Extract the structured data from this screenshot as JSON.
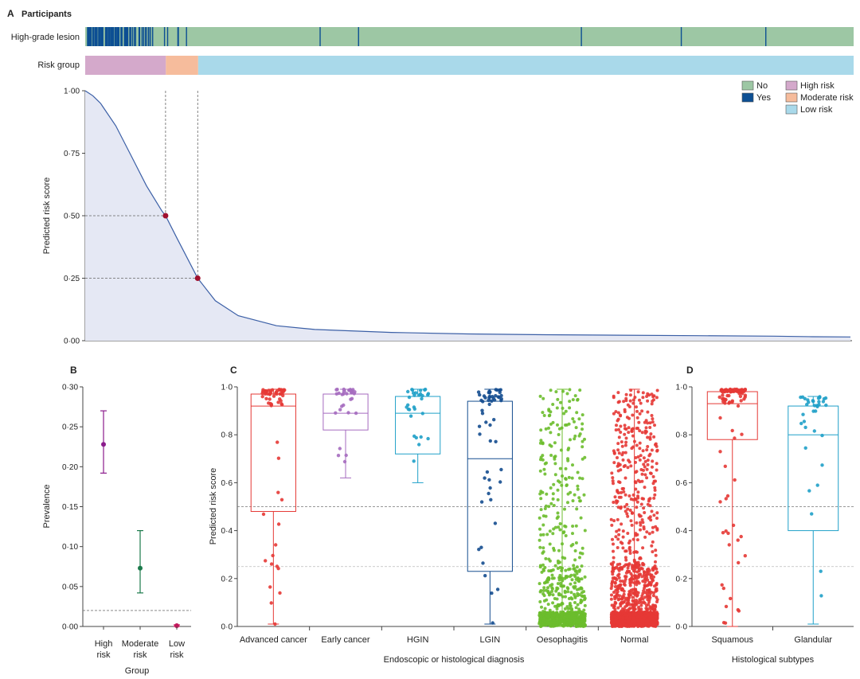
{
  "panelA": {
    "letter": "A",
    "title": "Participants",
    "row_lesion_label": "High-grade lesion",
    "row_risk_label": "Risk group",
    "ylabel": "Predicted risk score",
    "yticks": [
      "1·00",
      "0·75",
      "0·50",
      "0·25",
      "0·00"
    ],
    "legend": {
      "no": "No",
      "yes": "Yes",
      "high": "High risk",
      "moderate": "Moderate risk",
      "low": "Low risk"
    },
    "colors": {
      "no": "#9dc7a4",
      "yes": "#0d4f93",
      "high": "#d4a9cb",
      "moderate": "#f6bc9c",
      "low": "#a9d9ea",
      "curve": "#3b5fa6",
      "fill": "#e5e8f4",
      "dot": "#a0102e"
    },
    "thresholds": [
      0.5,
      0.25
    ],
    "group_fractions": {
      "high": 0.105,
      "moderate": 0.147
    }
  },
  "panelB": {
    "letter": "B",
    "ylabel": "Prevalence",
    "xlabel": "Group",
    "yticks": [
      "0·30",
      "0·25",
      "0·20",
      "0·15",
      "0·10",
      "0·05",
      "0·00"
    ],
    "cat_lines": [
      [
        "High",
        "risk"
      ],
      [
        "Moderate",
        "risk"
      ],
      [
        "Low",
        "risk"
      ]
    ],
    "reference_line": 0.02
  },
  "panelC": {
    "letter": "C",
    "ylabel": "Predicted risk score",
    "xlabel": "Endoscopic or histological diagnosis",
    "yticks": [
      "1·0",
      "0·8",
      "0·6",
      "0·4",
      "0·2",
      "0·0"
    ]
  },
  "panelD": {
    "letter": "D",
    "xlabel": "Histological subtypes",
    "yticks": [
      "1·0",
      "0·8",
      "0·6",
      "0·4",
      "0·2",
      "0·0"
    ]
  },
  "chart_data": [
    {
      "id": "A",
      "type": "area",
      "title": "Participants",
      "ylabel": "Predicted risk score",
      "ylim": [
        0,
        1
      ],
      "x": [
        0,
        0.01,
        0.02,
        0.04,
        0.06,
        0.08,
        0.1,
        0.105,
        0.12,
        0.147,
        0.17,
        0.2,
        0.25,
        0.3,
        0.4,
        0.5,
        0.6,
        0.7,
        0.8,
        0.9,
        0.95,
        1.0
      ],
      "y": [
        1.0,
        0.98,
        0.95,
        0.86,
        0.74,
        0.62,
        0.52,
        0.5,
        0.41,
        0.25,
        0.16,
        0.1,
        0.06,
        0.045,
        0.033,
        0.027,
        0.024,
        0.022,
        0.02,
        0.018,
        0.016,
        0.015
      ],
      "highlighted_points": [
        {
          "x": 0.105,
          "y": 0.5
        },
        {
          "x": 0.147,
          "y": 0.25
        }
      ],
      "lesion_yes_positions": [
        0.305,
        0.355,
        0.645,
        0.775,
        0.885
      ],
      "legend": [
        "No",
        "Yes",
        "High risk",
        "Moderate risk",
        "Low risk"
      ]
    },
    {
      "id": "B",
      "type": "scatter",
      "ylabel": "Prevalence",
      "xlabel": "Group",
      "categories": [
        "High risk",
        "Moderate risk",
        "Low risk"
      ],
      "values": [
        0.228,
        0.073,
        0.001
      ],
      "ci_low": [
        0.192,
        0.042,
        0.0
      ],
      "ci_high": [
        0.27,
        0.12,
        0.002
      ],
      "colors": [
        "#8b1c8c",
        "#1b7a4b",
        "#c2185b"
      ],
      "ylim": [
        0,
        0.3
      ]
    },
    {
      "id": "C",
      "type": "box",
      "ylabel": "Predicted risk score",
      "xlabel": "Endoscopic or histological diagnosis",
      "ylim": [
        0,
        1
      ],
      "thresholds": [
        0.5,
        0.25
      ],
      "categories": [
        "Advanced cancer",
        "Early cancer",
        "HGIN",
        "LGIN",
        "Oesophagitis",
        "Normal"
      ],
      "colors": [
        "#e53935",
        "#a56bbf",
        "#1fa0c8",
        "#144d8f",
        "#6cbd2c",
        "#e53935"
      ],
      "boxes": [
        {
          "min": 0.01,
          "q1": 0.48,
          "median": 0.92,
          "q3": 0.97,
          "max": 0.99,
          "n": 60
        },
        {
          "min": 0.62,
          "q1": 0.82,
          "median": 0.89,
          "q3": 0.97,
          "max": 0.99,
          "n": 30
        },
        {
          "min": 0.6,
          "q1": 0.72,
          "median": 0.89,
          "q3": 0.96,
          "max": 0.99,
          "n": 30
        },
        {
          "min": 0.01,
          "q1": 0.23,
          "median": 0.7,
          "q3": 0.94,
          "max": 0.99,
          "n": 55
        },
        {
          "min": 0.0,
          "q1": 0.01,
          "median": 0.02,
          "q3": 0.04,
          "max": 0.99,
          "n": 900
        },
        {
          "min": 0.0,
          "q1": 0.005,
          "median": 0.01,
          "q3": 0.025,
          "max": 0.99,
          "n": 1500
        }
      ]
    },
    {
      "id": "D",
      "type": "box",
      "xlabel": "Histological subtypes",
      "ylim": [
        0,
        1
      ],
      "thresholds": [
        0.5,
        0.25
      ],
      "categories": [
        "Squamous",
        "Glandular"
      ],
      "colors": [
        "#e53935",
        "#1fa0c8"
      ],
      "boxes": [
        {
          "min": 0.0,
          "q1": 0.78,
          "median": 0.93,
          "q3": 0.98,
          "max": 0.99,
          "n": 110
        },
        {
          "min": 0.01,
          "q1": 0.4,
          "median": 0.8,
          "q3": 0.92,
          "max": 0.96,
          "n": 35
        }
      ]
    }
  ]
}
